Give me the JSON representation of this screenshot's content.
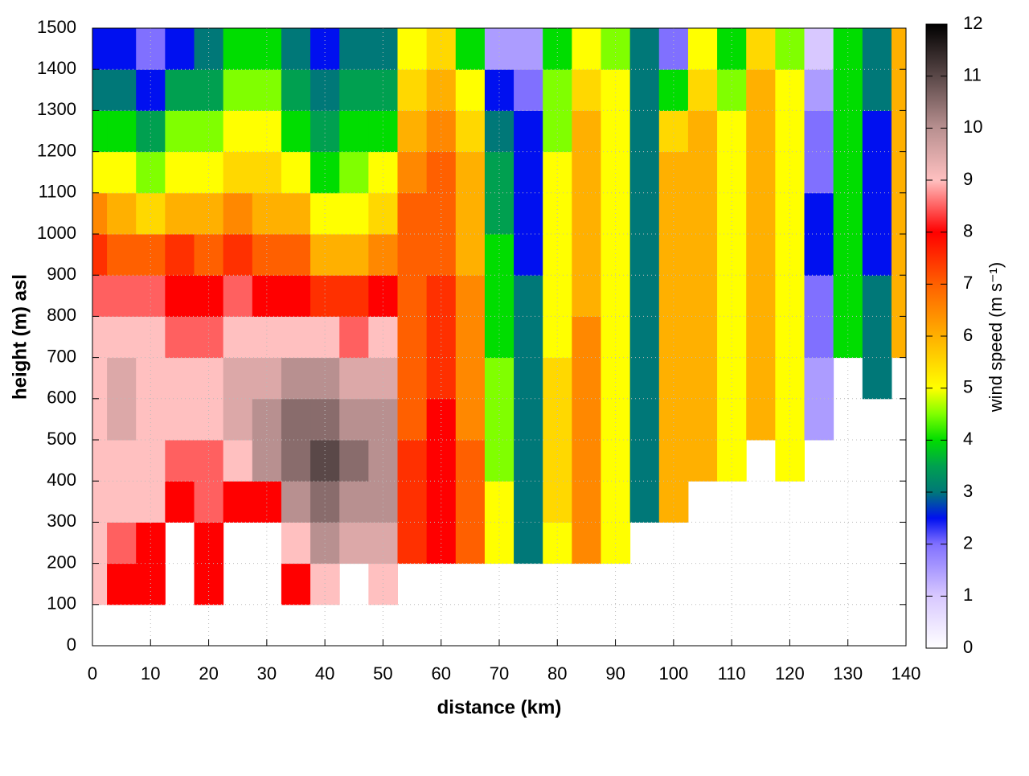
{
  "chart_data": {
    "type": "heatmap",
    "xlabel": "distance (km)",
    "ylabel": "height (m) asl",
    "colorbar_label": "wind speed (m s⁻¹)",
    "x": [
      0,
      5,
      10,
      15,
      20,
      25,
      30,
      35,
      40,
      45,
      50,
      55,
      60,
      65,
      70,
      75,
      80,
      85,
      90,
      95,
      100,
      105,
      110,
      115,
      120,
      125,
      130,
      135,
      140
    ],
    "y": [
      50,
      150,
      250,
      350,
      450,
      550,
      650,
      750,
      850,
      950,
      1050,
      1150,
      1250,
      1350,
      1450
    ],
    "values": [
      [
        null,
        9,
        9,
        9,
        9,
        9,
        9,
        9,
        8.5,
        7.5,
        6.5,
        5,
        4,
        3,
        2.5
      ],
      [
        null,
        8,
        8.5,
        9,
        9,
        9.5,
        9.5,
        9,
        8.5,
        7,
        6,
        5,
        4,
        3,
        2.5
      ],
      [
        null,
        8,
        8,
        9,
        9,
        9,
        9,
        9,
        8.5,
        7,
        5.5,
        4.5,
        3.5,
        2.5,
        2
      ],
      [
        null,
        null,
        null,
        8,
        8.5,
        9,
        9,
        8.5,
        8,
        7.5,
        6,
        5,
        4.5,
        3.5,
        2.5
      ],
      [
        null,
        8,
        8,
        8.5,
        8.5,
        9,
        9,
        8.5,
        8,
        7,
        6,
        5,
        4.5,
        3.5,
        3
      ],
      [
        null,
        null,
        null,
        8,
        9,
        9.5,
        9.5,
        9,
        8.5,
        7.5,
        6.5,
        5.5,
        5,
        4.5,
        4
      ],
      [
        null,
        null,
        null,
        8,
        10,
        10,
        9.5,
        9,
        8,
        7,
        6,
        5.5,
        5,
        4.5,
        4
      ],
      [
        null,
        8,
        9,
        10,
        10.5,
        10.5,
        10,
        9,
        8,
        7,
        6,
        5,
        4,
        3.5,
        3
      ],
      [
        null,
        9,
        10,
        10.5,
        11,
        10.5,
        10,
        9,
        7.5,
        6,
        5,
        4,
        3.5,
        3,
        2.5
      ],
      [
        null,
        null,
        9.5,
        10,
        10.5,
        10,
        9.5,
        8.5,
        7.5,
        6,
        5,
        4.5,
        4,
        3.5,
        3
      ],
      [
        null,
        9,
        9.5,
        10,
        10,
        10,
        9.5,
        9,
        8,
        6.5,
        5.5,
        5,
        4,
        3.5,
        3
      ],
      [
        null,
        null,
        7.5,
        7.5,
        7.5,
        7,
        7,
        7,
        7,
        7,
        7,
        6.5,
        6,
        5.5,
        5
      ],
      [
        null,
        null,
        8,
        8,
        8,
        8,
        7.5,
        7.5,
        7.5,
        7,
        7,
        7,
        6.5,
        6,
        5.5
      ],
      [
        null,
        null,
        7,
        7,
        7,
        6.5,
        6.5,
        6.5,
        6.5,
        6,
        6,
        6,
        5.5,
        5,
        4
      ],
      [
        null,
        null,
        5,
        5,
        4.5,
        4.5,
        4.5,
        4,
        4,
        4,
        3.5,
        3.5,
        3,
        2.5,
        1.5
      ],
      [
        null,
        null,
        3,
        3,
        3,
        3,
        3,
        3,
        3,
        2.5,
        2.5,
        2.5,
        2.5,
        2,
        1.5
      ],
      [
        null,
        null,
        5,
        5.5,
        5.5,
        5.5,
        5.5,
        5,
        5,
        5,
        5,
        5,
        4.5,
        4.5,
        4
      ],
      [
        null,
        null,
        6.5,
        6.5,
        6.5,
        6.5,
        6.5,
        6.5,
        6,
        6,
        6,
        6,
        6,
        5.5,
        5
      ],
      [
        null,
        null,
        5,
        5,
        5,
        5,
        5,
        5,
        5,
        5,
        5,
        5,
        5,
        5,
        4.5
      ],
      [
        null,
        null,
        null,
        3,
        3,
        3,
        3,
        3,
        3,
        3,
        3,
        3,
        3,
        3,
        3
      ],
      [
        null,
        null,
        null,
        6,
        6,
        6,
        6,
        6,
        6,
        6,
        6,
        6,
        5.5,
        4,
        2
      ],
      [
        null,
        null,
        null,
        null,
        6,
        6,
        6,
        6,
        6,
        6,
        6,
        6,
        6,
        5.5,
        5
      ],
      [
        null,
        null,
        null,
        null,
        5,
        5,
        5,
        5,
        5,
        5,
        5,
        5,
        5,
        4.5,
        4
      ],
      [
        null,
        null,
        null,
        null,
        null,
        6,
        6,
        6,
        6,
        6,
        6,
        6,
        6,
        6,
        5.5
      ],
      [
        null,
        null,
        null,
        null,
        5,
        5,
        5,
        5,
        5,
        5,
        5,
        5,
        5,
        5,
        4.5
      ],
      [
        null,
        null,
        null,
        null,
        null,
        1.5,
        1.5,
        2,
        2,
        2.5,
        2.5,
        2,
        2,
        1.5,
        1
      ],
      [
        null,
        null,
        null,
        null,
        null,
        null,
        null,
        4,
        4,
        4,
        4,
        4,
        4,
        4,
        4
      ],
      [
        null,
        null,
        null,
        null,
        null,
        null,
        3,
        3,
        3,
        2.5,
        2.5,
        2.5,
        2.5,
        3,
        3
      ],
      [
        null,
        null,
        null,
        null,
        null,
        null,
        null,
        6,
        6,
        6,
        6,
        6,
        6,
        6,
        6
      ]
    ],
    "xlim": [
      0,
      140
    ],
    "xticks": [
      0,
      10,
      20,
      30,
      40,
      50,
      60,
      70,
      80,
      90,
      100,
      110,
      120,
      130,
      140
    ],
    "ylim": [
      0,
      1500
    ],
    "yticks": [
      0,
      100,
      200,
      300,
      400,
      500,
      600,
      700,
      800,
      900,
      1000,
      1100,
      1200,
      1300,
      1400,
      1500
    ],
    "clim": [
      0,
      12
    ],
    "cticks": [
      0,
      1,
      2,
      3,
      4,
      5,
      6,
      7,
      8,
      9,
      10,
      11,
      12
    ],
    "colorscale": [
      [
        0,
        "#ffffff"
      ],
      [
        1,
        "#d8c8ff"
      ],
      [
        2,
        "#8070ff"
      ],
      [
        2.5,
        "#0010f0"
      ],
      [
        3,
        "#007878"
      ],
      [
        3.5,
        "#00a050"
      ],
      [
        4,
        "#00dd00"
      ],
      [
        4.5,
        "#80ff00"
      ],
      [
        5,
        "#ffff00"
      ],
      [
        6,
        "#ffb000"
      ],
      [
        7,
        "#ff6000"
      ],
      [
        8,
        "#ff0000"
      ],
      [
        9,
        "#ffc0c0"
      ],
      [
        10,
        "#b89090"
      ],
      [
        11,
        "#5a4848"
      ],
      [
        12,
        "#000000"
      ]
    ],
    "grid": true
  }
}
